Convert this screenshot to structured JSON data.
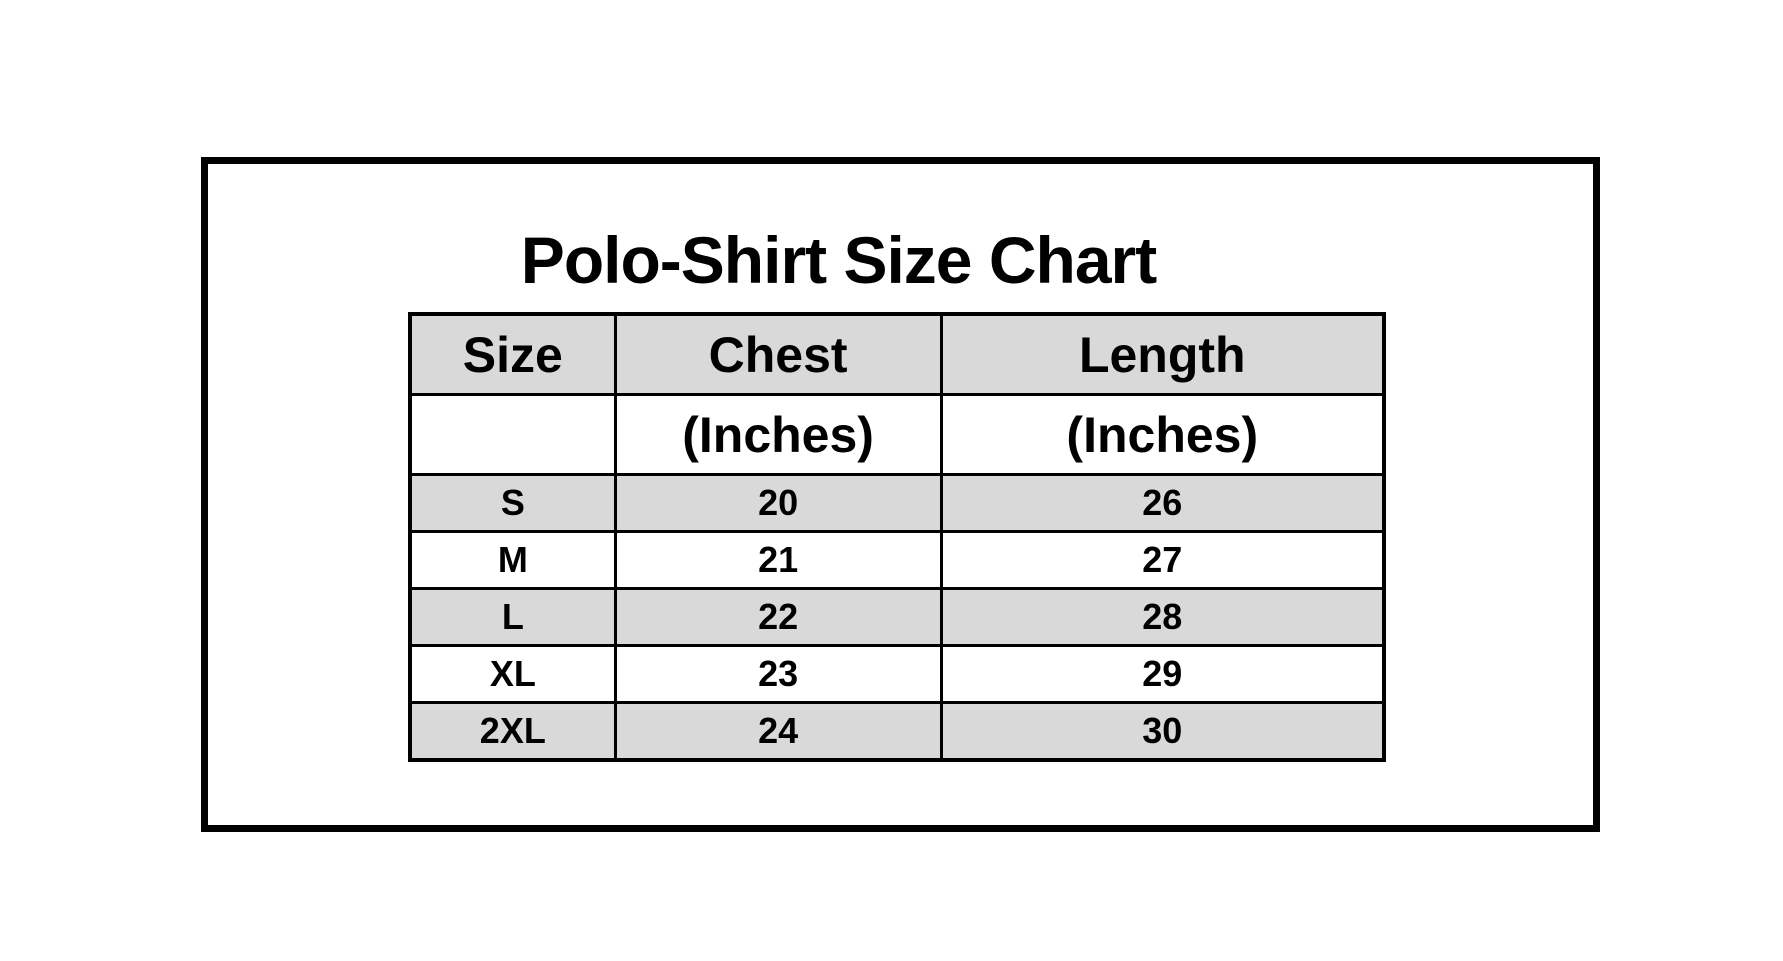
{
  "title": "Polo-Shirt Size Chart",
  "table": {
    "headers": [
      "Size",
      "Chest",
      "Length"
    ],
    "subheaders": [
      "",
      "(Inches)",
      "(Inches)"
    ],
    "rows": [
      [
        "S",
        "20",
        "26"
      ],
      [
        "M",
        "21",
        "27"
      ],
      [
        "L",
        "22",
        "28"
      ],
      [
        "XL",
        "23",
        "29"
      ],
      [
        "2XL",
        "24",
        "30"
      ]
    ]
  },
  "colors": {
    "shaded_row": "#d9d9d9",
    "border": "#000000"
  }
}
